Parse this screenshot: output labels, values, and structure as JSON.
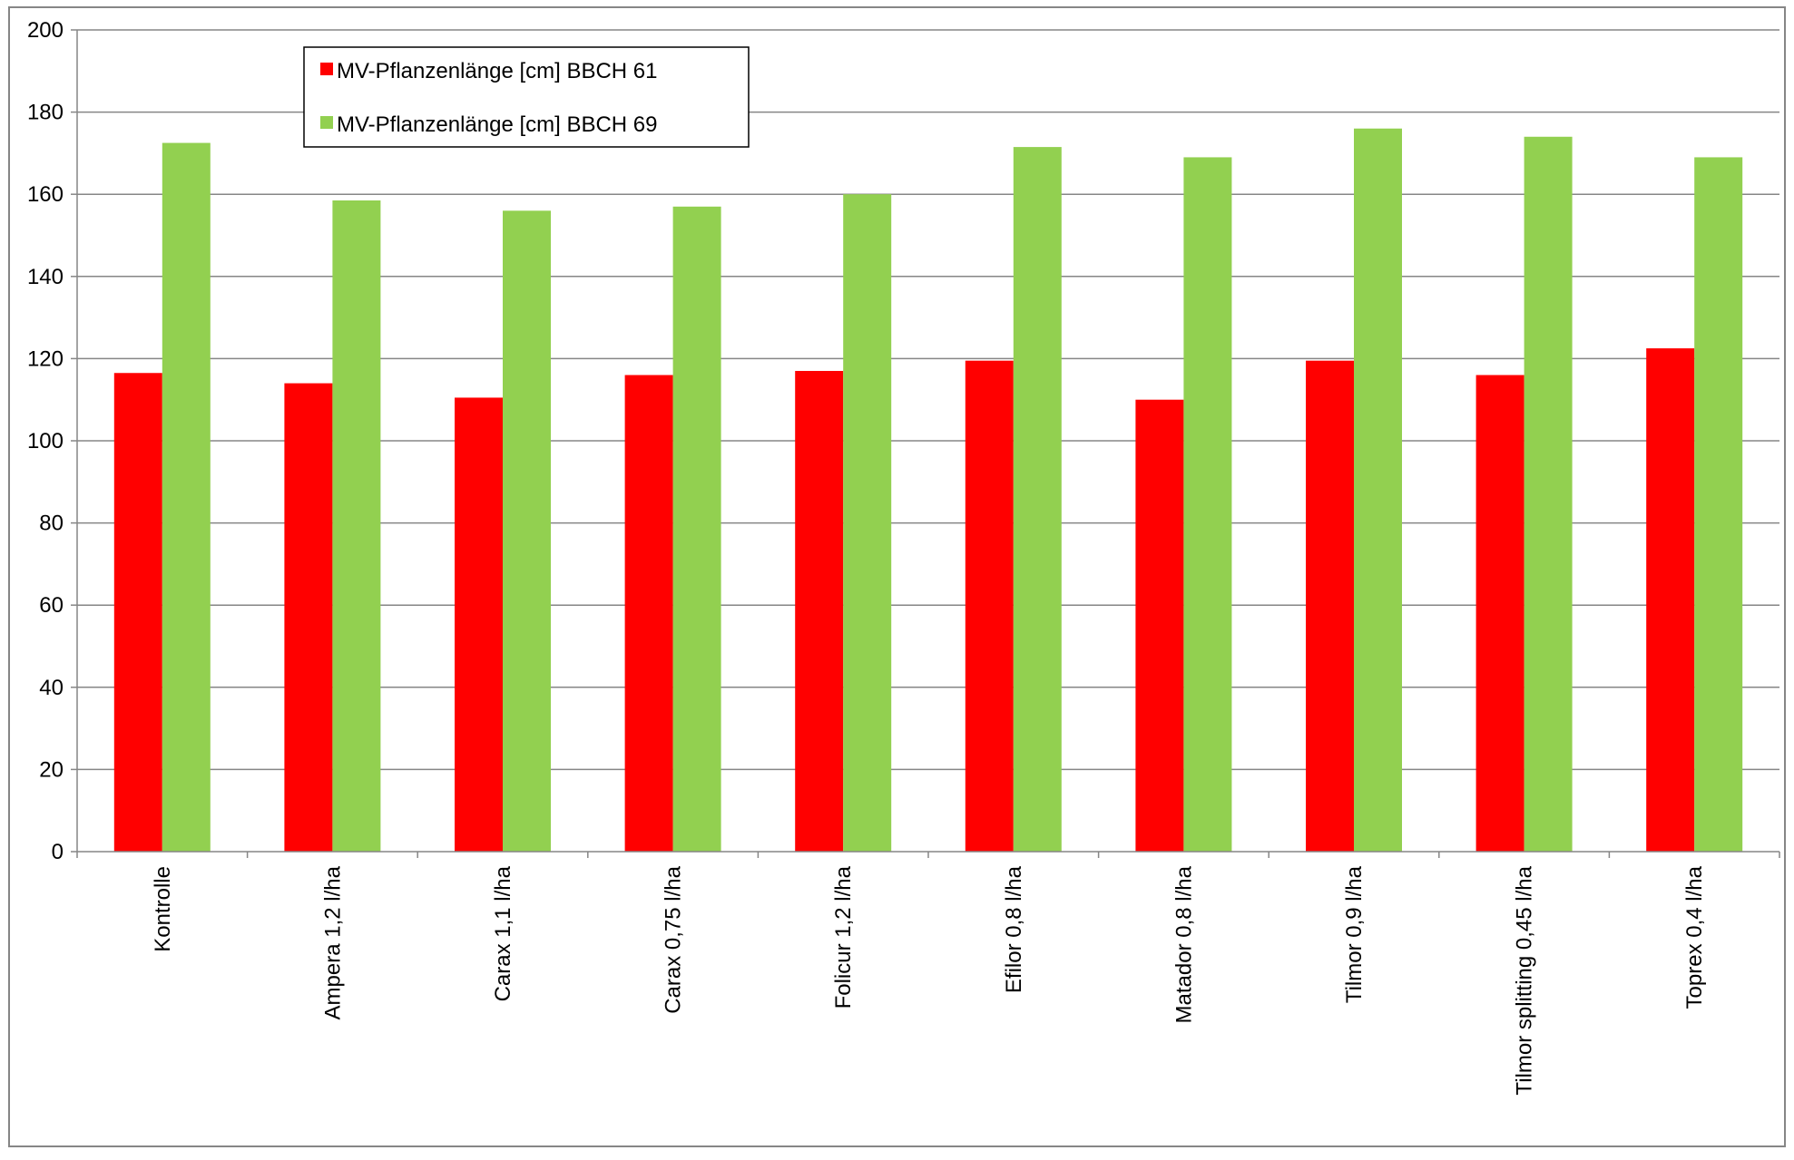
{
  "colors": {
    "bbch61": "#ff0000",
    "bbch69": "#92d050",
    "grid": "#868686",
    "frame": "#868686"
  },
  "chart_data": {
    "type": "bar",
    "categories": [
      "Kontrolle",
      "Ampera 1,2 l/ha",
      "Carax 1,1 l/ha",
      "Carax 0,75 l/ha",
      "Folicur 1,2 l/ha",
      "Efilor 0,8 l/ha",
      "Matador 0,8 l/ha",
      "Tilmor 0,9 l/ha",
      "Tilmor splitting 0,45 l/ha",
      "Toprex 0,4 l/ha"
    ],
    "series": [
      {
        "name": "MV-Pflanzenlänge [cm] BBCH 61",
        "color": "#ff0000",
        "values": [
          116.5,
          114,
          110.5,
          116,
          117,
          119.5,
          110,
          119.5,
          116,
          122.5
        ]
      },
      {
        "name": "MV-Pflanzenlänge [cm] BBCH 69",
        "color": "#92d050",
        "values": [
          172.5,
          158.5,
          156,
          157,
          160,
          171.5,
          169,
          176,
          174,
          169
        ]
      }
    ],
    "yticks": [
      "0",
      "20",
      "40",
      "60",
      "80",
      "100",
      "120",
      "140",
      "160",
      "180",
      "200"
    ],
    "ylim": [
      0,
      200
    ],
    "grid": true,
    "legend_position": "top-left"
  }
}
